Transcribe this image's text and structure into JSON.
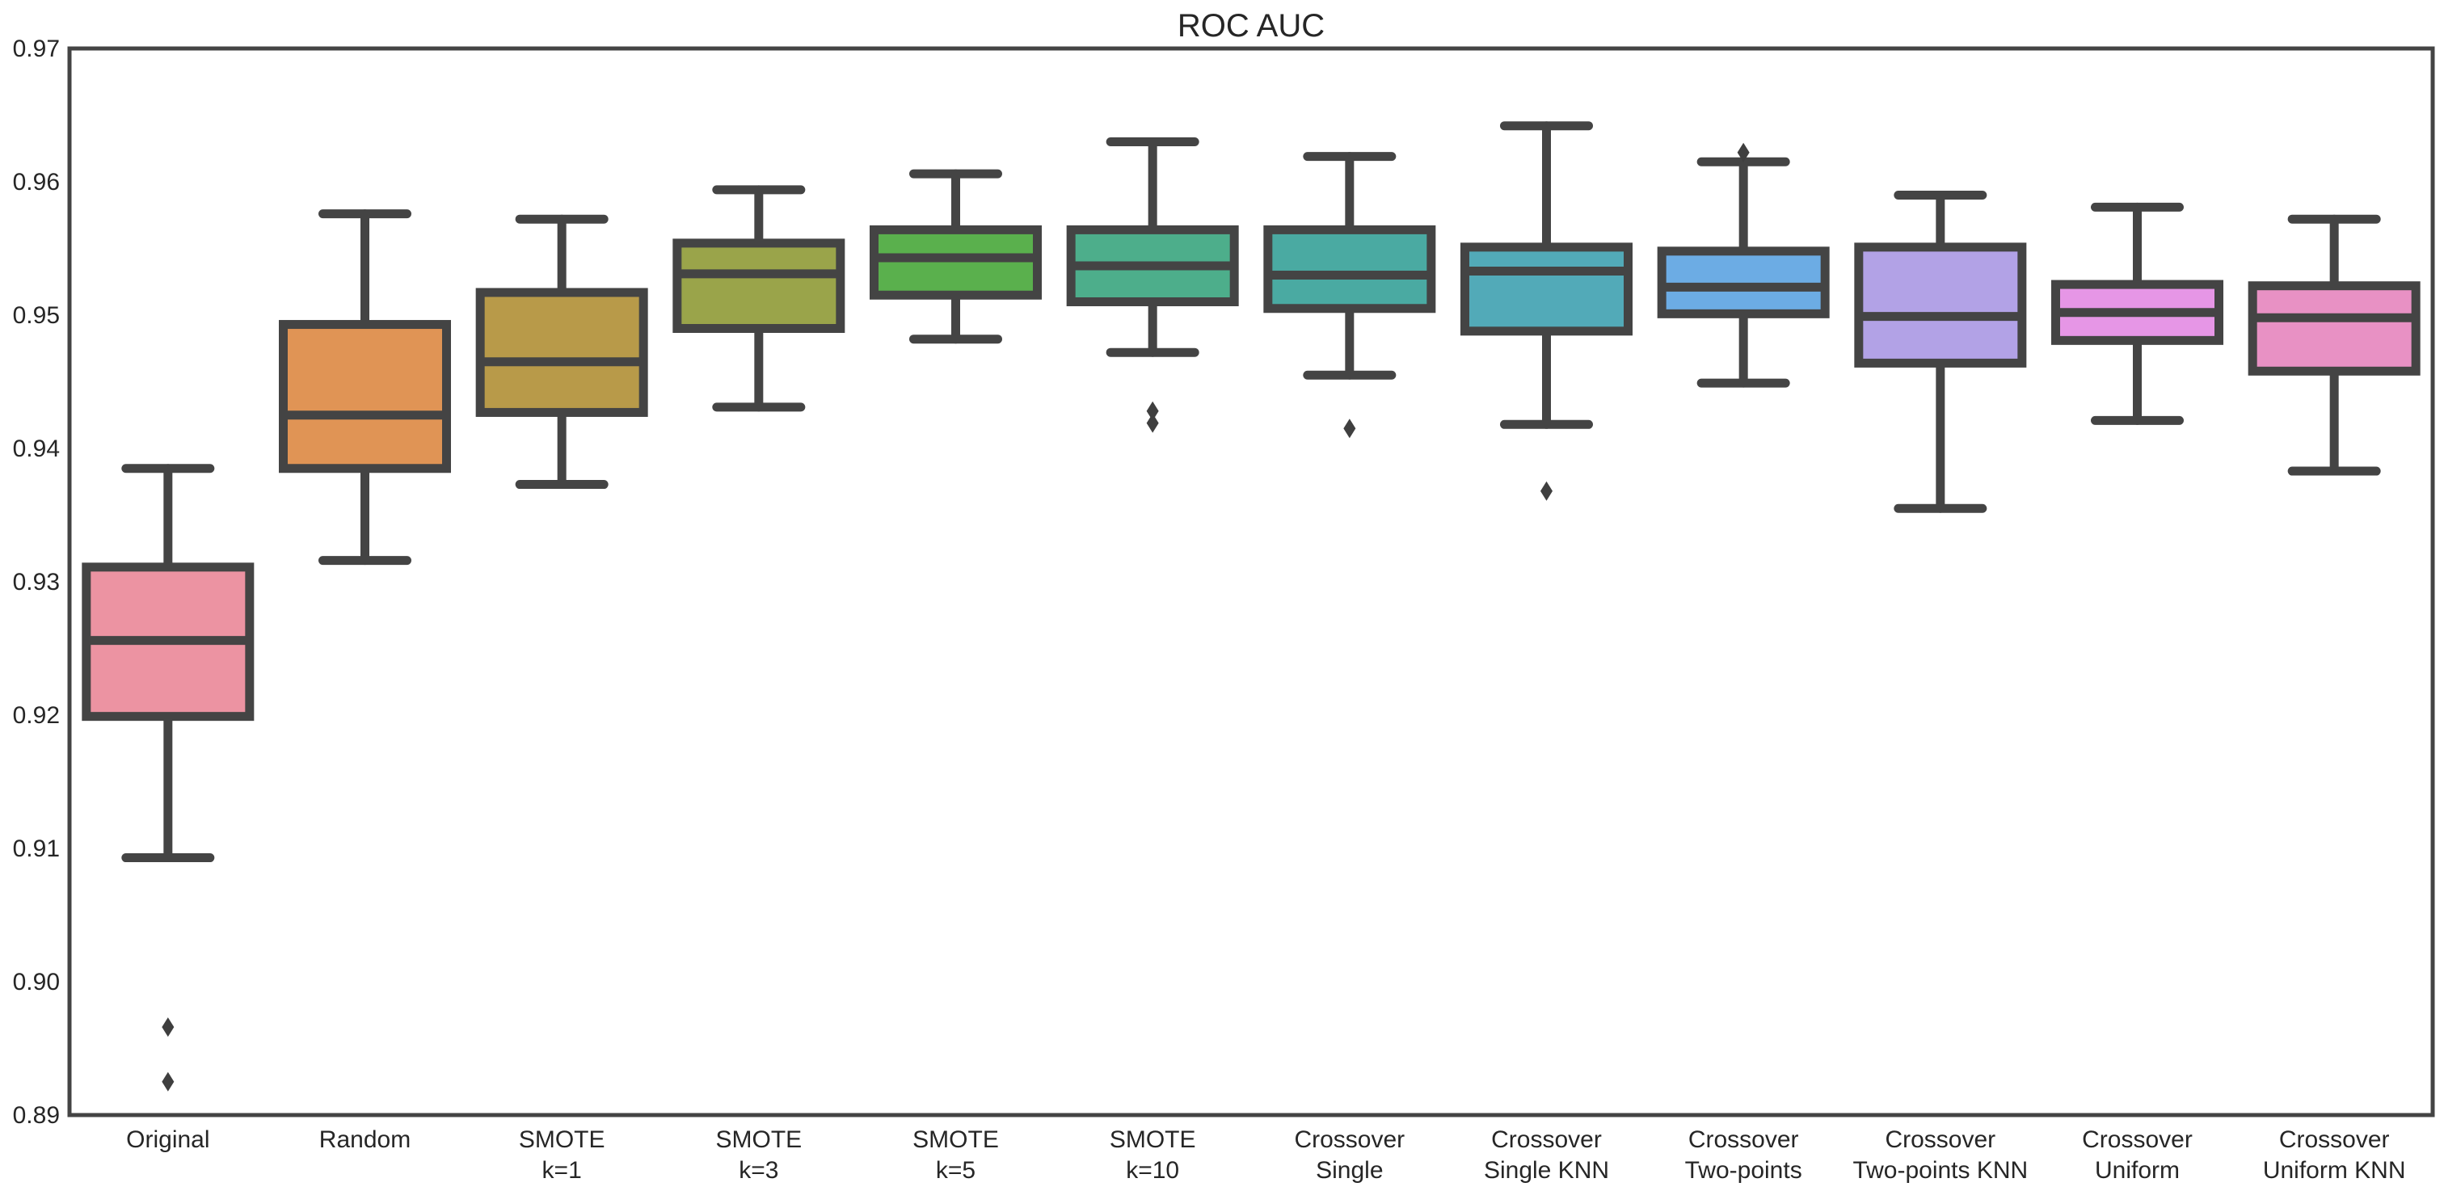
{
  "figure": {
    "background": "#ffffff",
    "frame_color": "#444444",
    "line_color": "#444444",
    "outlier_color": "#3f3f3f",
    "text_color": "#262626"
  },
  "chart_data": {
    "type": "boxplot",
    "title": "ROC AUC",
    "xlabel": "",
    "ylabel": "",
    "grid": false,
    "legend_position": "none",
    "ylim": [
      0.89,
      0.97
    ],
    "ytick_labels": [
      "0.89",
      "0.90",
      "0.91",
      "0.92",
      "0.93",
      "0.94",
      "0.95",
      "0.96",
      "0.97"
    ],
    "ytick_values": [
      0.89,
      0.9,
      0.91,
      0.92,
      0.93,
      0.94,
      0.95,
      0.96,
      0.97
    ],
    "categories": [
      "Original",
      "Random",
      "SMOTE k=1",
      "SMOTE k=3",
      "SMOTE k=5",
      "SMOTE k=10",
      "Crossover Single",
      "Crossover Single KNN",
      "Crossover Two-points",
      "Crossover Two-points KNN",
      "Crossover Uniform",
      "Crossover Uniform KNN"
    ],
    "boxes": [
      {
        "label_lines": [
          "Original"
        ],
        "color": "#ec93a2",
        "whisker_low": 0.9093,
        "q1": 0.9199,
        "median": 0.9256,
        "q3": 0.9311,
        "whisker_high": 0.9385,
        "outliers": [
          0.8966,
          0.8925
        ]
      },
      {
        "label_lines": [
          "Random"
        ],
        "color": "#e09455",
        "whisker_low": 0.9316,
        "q1": 0.9385,
        "median": 0.9425,
        "q3": 0.9493,
        "whisker_high": 0.9576,
        "outliers": []
      },
      {
        "label_lines": [
          "SMOTE",
          "k=1"
        ],
        "color": "#b89a49",
        "whisker_low": 0.9373,
        "q1": 0.9427,
        "median": 0.9465,
        "q3": 0.9517,
        "whisker_high": 0.9572,
        "outliers": []
      },
      {
        "label_lines": [
          "SMOTE",
          "k=3"
        ],
        "color": "#9aa44a",
        "whisker_low": 0.9431,
        "q1": 0.949,
        "median": 0.9531,
        "q3": 0.9554,
        "whisker_high": 0.9594,
        "outliers": []
      },
      {
        "label_lines": [
          "SMOTE",
          "k=5"
        ],
        "color": "#5ab04d",
        "whisker_low": 0.9482,
        "q1": 0.9515,
        "median": 0.9543,
        "q3": 0.9564,
        "whisker_high": 0.9606,
        "outliers": []
      },
      {
        "label_lines": [
          "SMOTE",
          "k=10"
        ],
        "color": "#4dae8b",
        "whisker_low": 0.9472,
        "q1": 0.951,
        "median": 0.9537,
        "q3": 0.9564,
        "whisker_high": 0.963,
        "outliers": [
          0.9428,
          0.9419
        ]
      },
      {
        "label_lines": [
          "Crossover",
          "Single"
        ],
        "color": "#4aaaa2",
        "whisker_low": 0.9455,
        "q1": 0.9505,
        "median": 0.953,
        "q3": 0.9564,
        "whisker_high": 0.9619,
        "outliers": [
          0.9415
        ]
      },
      {
        "label_lines": [
          "Crossover",
          "Single KNN"
        ],
        "color": "#52aab8",
        "whisker_low": 0.9418,
        "q1": 0.9488,
        "median": 0.9533,
        "q3": 0.9551,
        "whisker_high": 0.9642,
        "outliers": [
          0.9368
        ]
      },
      {
        "label_lines": [
          "Crossover",
          "Two-points"
        ],
        "color": "#6cace4",
        "whisker_low": 0.9449,
        "q1": 0.9501,
        "median": 0.9521,
        "q3": 0.9548,
        "whisker_high": 0.9615,
        "outliers": [
          0.9622
        ]
      },
      {
        "label_lines": [
          "Crossover",
          "Two-points KNN"
        ],
        "color": "#b2a2e6",
        "whisker_low": 0.9355,
        "q1": 0.9464,
        "median": 0.9499,
        "q3": 0.9551,
        "whisker_high": 0.959,
        "outliers": []
      },
      {
        "label_lines": [
          "Crossover",
          "Uniform"
        ],
        "color": "#e696e6",
        "whisker_low": 0.9421,
        "q1": 0.9481,
        "median": 0.9502,
        "q3": 0.9523,
        "whisker_high": 0.9581,
        "outliers": []
      },
      {
        "label_lines": [
          "Crossover",
          "Uniform KNN"
        ],
        "color": "#e891c4",
        "whisker_low": 0.9383,
        "q1": 0.9458,
        "median": 0.9498,
        "q3": 0.9522,
        "whisker_high": 0.9572,
        "outliers": []
      }
    ]
  }
}
